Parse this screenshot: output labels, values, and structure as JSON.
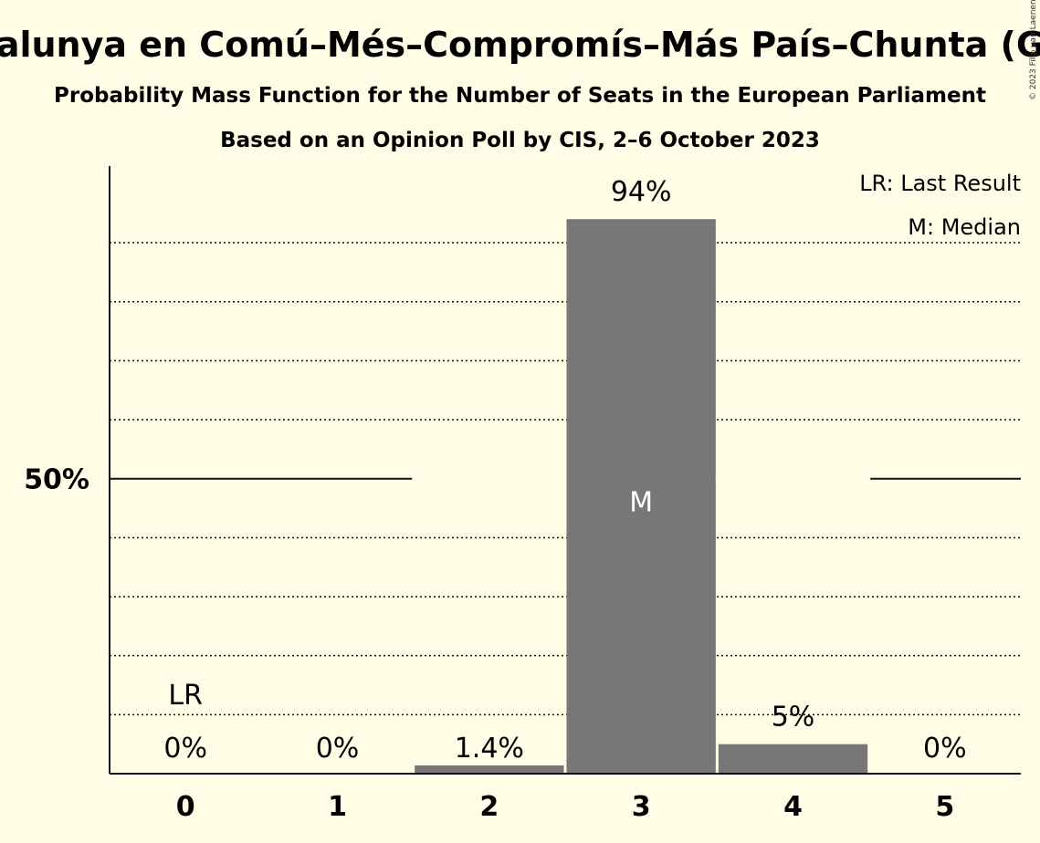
{
  "chart_data": {
    "type": "bar",
    "title": "Sumar–Catalunya en Comú–Més–Compromís–Más País–Chunta (Greens/EFA)",
    "subtitle": "Probability Mass Function for the Number of Seats in the European Parliament",
    "subtitle2": "Based on an Opinion Poll by CIS, 2–6 October 2023",
    "categories": [
      "0",
      "1",
      "2",
      "3",
      "4",
      "5"
    ],
    "values": [
      0,
      0,
      1.4,
      94,
      5,
      0
    ],
    "value_labels": [
      "0%",
      "0%",
      "1.4%",
      "94%",
      "5%",
      "0%"
    ],
    "ylim": [
      0,
      103
    ],
    "y_tick_label": "50%",
    "y_tick_value": 50,
    "grid": true,
    "gridlines": [
      10,
      20,
      30,
      40,
      60,
      70,
      80,
      90
    ],
    "bar_color": "#777777",
    "background_color": "#fffde6",
    "last_result_category": "0",
    "last_result_marker": "LR",
    "median_category": "3",
    "median_marker": "M",
    "legend": {
      "placement": "top-right",
      "items": [
        "LR: Last Result",
        "M: Median"
      ]
    },
    "copyright": "© 2023 Filip van Laenen"
  }
}
